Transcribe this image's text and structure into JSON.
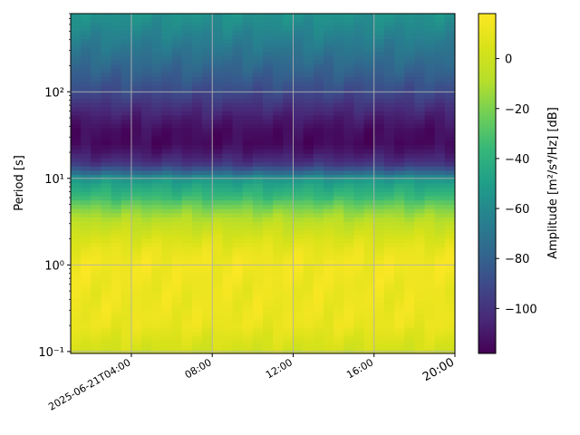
{
  "chart_data": {
    "type": "heatmap",
    "title": "",
    "ylabel": "Period [s]",
    "colorbar_label": "Amplitude [m²/s⁴/Hz] [dB]",
    "colormap": "viridis",
    "y_scale": "log",
    "ylim": [
      0.095,
      800
    ],
    "xlim": [
      "2025-06-21T01:00",
      "2025-06-21T20:00"
    ],
    "x_tick_labels": [
      "2025-06-21T04:00",
      "08:00",
      "12:00",
      "16:00",
      "20:00"
    ],
    "x_tick_values": [
      "2025-06-21T04:00",
      "2025-06-21T08:00",
      "2025-06-21T12:00",
      "2025-06-21T16:00",
      "2025-06-21T20:00"
    ],
    "y_tick_labels": [
      "10⁻¹",
      "10⁰",
      "10¹",
      "10²"
    ],
    "y_tick_values": [
      0.1,
      1,
      10,
      100
    ],
    "colorbar_ticks": [
      0,
      -20,
      -40,
      -60,
      -80,
      -100
    ],
    "colorbar_range": [
      -118,
      18
    ],
    "grid": true,
    "amplitude_profile": {
      "periods": [
        800,
        500,
        300,
        150,
        100,
        70,
        50,
        35,
        25,
        20,
        15,
        12,
        10,
        8,
        6,
        5,
        4,
        3,
        2,
        1.5,
        1,
        0.7,
        0.5,
        0.3,
        0.2,
        0.15,
        0.1
      ],
      "amplitude_db": [
        -55,
        -62,
        -70,
        -82,
        -90,
        -100,
        -108,
        -114,
        -115,
        -110,
        -100,
        -80,
        -55,
        -45,
        -35,
        -25,
        -15,
        -5,
        5,
        10,
        14,
        13,
        12,
        12,
        11,
        7,
        2
      ]
    }
  }
}
